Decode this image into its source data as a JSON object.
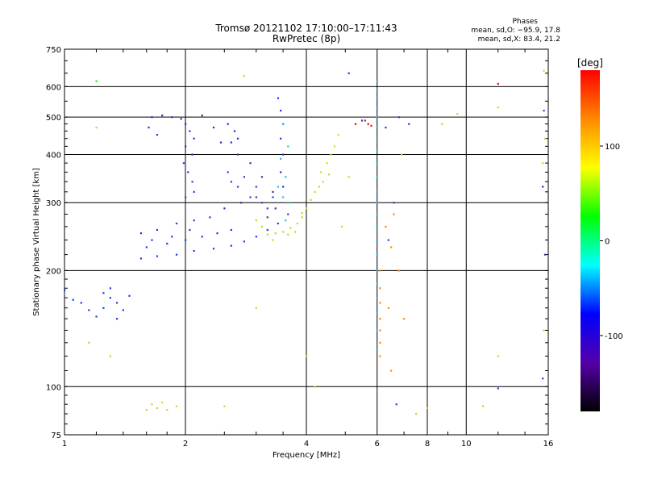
{
  "chart_data": {
    "type": "scatter",
    "title": "Tromsø 20121102 17:10:00–17:11:43",
    "subtitle": "RwPretec (8p)",
    "xlabel": "Frequency [MHz]",
    "ylabel": "Stationary phase Virtual Height [km]",
    "x_scale": "log",
    "y_scale": "log",
    "xlim": [
      1,
      16
    ],
    "ylim": [
      75,
      750
    ],
    "x_ticks": [
      1,
      2,
      4,
      6,
      8,
      10,
      16
    ],
    "y_ticks": [
      75,
      100,
      200,
      300,
      400,
      500,
      600,
      750
    ],
    "x_grid": [
      2,
      4,
      6,
      8,
      10
    ],
    "y_grid": [
      100,
      200,
      300,
      400,
      500,
      600
    ],
    "grid": true,
    "stats": {
      "heading": "Phases",
      "o_line": "mean, sd,O: −95.9, 17.8",
      "x_line": "mean, sd,X:  83.4, 21.2"
    },
    "colorbar": {
      "label": "[deg]",
      "range": [
        -180,
        180
      ],
      "ticks": [
        100,
        0,
        -100
      ],
      "colors": [
        "#ff0000",
        "#ff8800",
        "#ffff00",
        "#00ff00",
        "#00ffff",
        "#0000ff",
        "#5500aa",
        "#000000"
      ]
    },
    "series": [
      {
        "color": "#1d3ddd",
        "points": [
          [
            1.55,
            215
          ],
          [
            1.7,
            218
          ],
          [
            1.9,
            220
          ],
          [
            2.1,
            225
          ],
          [
            2.35,
            228
          ],
          [
            2.6,
            232
          ],
          [
            2.8,
            238
          ],
          [
            3.0,
            245
          ],
          [
            3.2,
            255
          ],
          [
            3.4,
            265
          ],
          [
            3.6,
            280
          ],
          [
            1.6,
            230
          ],
          [
            1.8,
            235
          ],
          [
            2.0,
            240
          ],
          [
            2.2,
            245
          ],
          [
            2.4,
            250
          ],
          [
            2.6,
            255
          ],
          [
            1.55,
            250
          ],
          [
            1.7,
            255
          ],
          [
            1.9,
            265
          ],
          [
            2.1,
            270
          ],
          [
            2.3,
            275
          ],
          [
            1.65,
            240
          ],
          [
            1.85,
            245
          ],
          [
            2.05,
            255
          ]
        ]
      },
      {
        "color": "#1f2ee0",
        "points": [
          [
            1.65,
            500
          ],
          [
            1.75,
            505
          ],
          [
            1.85,
            500
          ],
          [
            1.95,
            495
          ],
          [
            2.0,
            480
          ],
          [
            2.05,
            460
          ],
          [
            2.1,
            440
          ],
          [
            2.0,
            420
          ],
          [
            2.08,
            400
          ],
          [
            1.62,
            470
          ],
          [
            1.7,
            450
          ],
          [
            2.55,
            480
          ],
          [
            2.65,
            460
          ],
          [
            2.6,
            430
          ],
          [
            2.7,
            440
          ],
          [
            3.4,
            560
          ],
          [
            3.45,
            520
          ],
          [
            3.5,
            480
          ],
          [
            3.45,
            440
          ],
          [
            3.5,
            400
          ],
          [
            3.45,
            360
          ],
          [
            3.5,
            330
          ]
        ]
      },
      {
        "color": "#2840e6",
        "points": [
          [
            1.98,
            380
          ],
          [
            2.03,
            360
          ],
          [
            2.08,
            340
          ],
          [
            2.1,
            320
          ],
          [
            2.0,
            310
          ],
          [
            2.55,
            360
          ],
          [
            2.6,
            340
          ],
          [
            2.7,
            330
          ],
          [
            2.8,
            350
          ],
          [
            2.9,
            310
          ],
          [
            3.0,
            330
          ],
          [
            3.1,
            300
          ],
          [
            3.2,
            290
          ],
          [
            3.3,
            310
          ]
        ]
      },
      {
        "color": "#3b2aa8",
        "points": [
          [
            2.2,
            505
          ],
          [
            2.35,
            470
          ],
          [
            2.45,
            430
          ],
          [
            2.7,
            400
          ],
          [
            2.9,
            380
          ],
          [
            3.1,
            350
          ],
          [
            3.3,
            320
          ],
          [
            2.5,
            290
          ],
          [
            2.75,
            300
          ],
          [
            3.0,
            310
          ],
          [
            3.2,
            275
          ],
          [
            3.35,
            290
          ]
        ]
      },
      {
        "color": "#20c8d8",
        "points": [
          [
            3.4,
            330
          ],
          [
            3.5,
            310
          ],
          [
            3.6,
            300
          ],
          [
            3.55,
            350
          ],
          [
            3.6,
            420
          ],
          [
            3.5,
            480
          ],
          [
            3.45,
            390
          ],
          [
            3.55,
            270
          ]
        ]
      },
      {
        "color": "#b4e020",
        "points": [
          [
            3.2,
            248
          ],
          [
            3.35,
            250
          ],
          [
            3.5,
            252
          ],
          [
            3.65,
            258
          ],
          [
            3.8,
            265
          ],
          [
            3.9,
            275
          ],
          [
            4.0,
            290
          ],
          [
            4.1,
            305
          ],
          [
            4.2,
            320
          ],
          [
            4.4,
            340
          ],
          [
            4.55,
            355
          ],
          [
            3.1,
            260
          ],
          [
            3.0,
            270
          ],
          [
            3.3,
            240
          ],
          [
            3.6,
            248
          ],
          [
            3.75,
            252
          ],
          [
            3.9,
            282
          ],
          [
            4.3,
            330
          ]
        ]
      },
      {
        "color": "#d8d820",
        "points": [
          [
            4.35,
            360
          ],
          [
            4.5,
            380
          ],
          [
            4.6,
            400
          ],
          [
            4.7,
            420
          ],
          [
            4.8,
            450
          ]
        ]
      },
      {
        "color": "#1d3ddd",
        "points": [
          [
            1.05,
            168
          ],
          [
            1.1,
            165
          ],
          [
            1.15,
            158
          ],
          [
            1.2,
            152
          ],
          [
            1.25,
            160
          ],
          [
            1.3,
            170
          ],
          [
            1.35,
            165
          ],
          [
            1.4,
            158
          ],
          [
            1.45,
            172
          ],
          [
            1.3,
            180
          ],
          [
            1.35,
            150
          ],
          [
            1.25,
            175
          ],
          [
            1.0,
            178
          ]
        ]
      },
      {
        "color": "#22b8e0",
        "points": [
          [
            6.0,
            620
          ],
          [
            6.0,
            590
          ],
          [
            6.0,
            560
          ],
          [
            6.0,
            530
          ],
          [
            6.0,
            500
          ],
          [
            6.0,
            470
          ],
          [
            6.0,
            440
          ],
          [
            6.0,
            410
          ],
          [
            6.0,
            380
          ],
          [
            6.0,
            350
          ],
          [
            6.0,
            320
          ],
          [
            6.0,
            300
          ],
          [
            6.0,
            280
          ],
          [
            6.0,
            260
          ],
          [
            6.0,
            240
          ],
          [
            6.0,
            220
          ],
          [
            6.0,
            200
          ],
          [
            6.0,
            185
          ],
          [
            6.0,
            170
          ],
          [
            6.0,
            155
          ],
          [
            6.0,
            140
          ],
          [
            6.0,
            125
          ]
        ]
      },
      {
        "color": "#ff8a00",
        "points": [
          [
            6.1,
            200
          ],
          [
            6.1,
            180
          ],
          [
            6.1,
            165
          ],
          [
            6.1,
            150
          ],
          [
            6.1,
            140
          ],
          [
            6.1,
            130
          ],
          [
            6.1,
            120
          ],
          [
            6.5,
            110
          ],
          [
            6.4,
            160
          ],
          [
            6.5,
            230
          ],
          [
            6.8,
            200
          ],
          [
            7.0,
            150
          ],
          [
            6.3,
            260
          ],
          [
            6.6,
            280
          ]
        ]
      },
      {
        "color": "#1d3ddd",
        "points": [
          [
            6.8,
            500
          ],
          [
            7.2,
            480
          ],
          [
            6.3,
            470
          ],
          [
            6.6,
            300
          ],
          [
            6.4,
            240
          ],
          [
            6.7,
            90
          ],
          [
            12.0,
            99
          ],
          [
            15.5,
            105
          ],
          [
            15.7,
            220
          ],
          [
            15.5,
            330
          ],
          [
            15.6,
            520
          ],
          [
            5.5,
            490
          ],
          [
            5.1,
            650
          ]
        ]
      },
      {
        "color": "#e81010",
        "points": [
          [
            5.6,
            490
          ],
          [
            5.7,
            480
          ],
          [
            5.8,
            475
          ],
          [
            12.0,
            610
          ],
          [
            5.3,
            480
          ]
        ]
      },
      {
        "color": "#e8c820",
        "points": [
          [
            1.6,
            87
          ],
          [
            1.7,
            88
          ],
          [
            1.8,
            87
          ],
          [
            1.9,
            89
          ],
          [
            1.65,
            90
          ],
          [
            1.75,
            91
          ],
          [
            2.5,
            89
          ],
          [
            3.0,
            160
          ],
          [
            4.2,
            100
          ],
          [
            4.0,
            120
          ],
          [
            7.5,
            85
          ],
          [
            8.0,
            88
          ],
          [
            11.0,
            89
          ],
          [
            12.0,
            120
          ],
          [
            15.6,
            140
          ],
          [
            15.5,
            380
          ],
          [
            15.7,
            440
          ],
          [
            15.6,
            660
          ],
          [
            1.2,
            470
          ],
          [
            2.8,
            640
          ],
          [
            1.15,
            130
          ],
          [
            1.3,
            120
          ],
          [
            8.7,
            480
          ],
          [
            6.9,
            400
          ],
          [
            9.5,
            510
          ],
          [
            12.0,
            530
          ],
          [
            4.9,
            260
          ],
          [
            5.1,
            350
          ]
        ]
      },
      {
        "color": "#28e028",
        "points": [
          [
            1.2,
            620
          ]
        ]
      }
    ]
  }
}
